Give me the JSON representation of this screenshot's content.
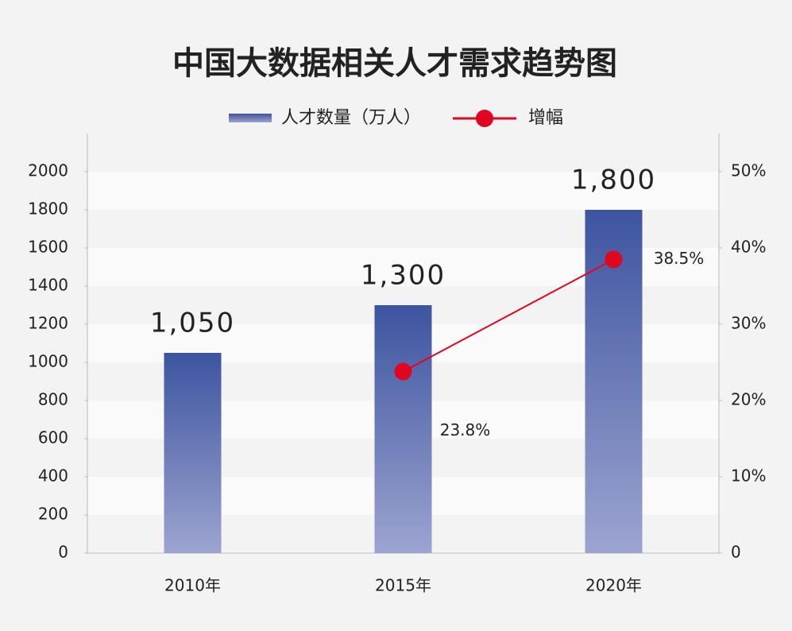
{
  "chart_data": {
    "type": "bar",
    "title": "中国大数据相关人才需求趋势图",
    "categories": [
      "2010年",
      "2015年",
      "2020年"
    ],
    "series": [
      {
        "name": "人才数量（万人）",
        "type": "bar",
        "color": "#3f56a0",
        "values": [
          1050,
          1300,
          1800
        ],
        "value_labels": [
          "1,050",
          "1,300",
          "1,800"
        ]
      },
      {
        "name": "增幅",
        "type": "line",
        "axis": "y2",
        "color": "#e0061f",
        "values": [
          null,
          23.8,
          38.5
        ],
        "value_labels": [
          null,
          "23.8%",
          "38.5%"
        ]
      }
    ],
    "ylim": [
      0,
      2200
    ],
    "yticks": [
      0,
      200,
      400,
      600,
      800,
      1000,
      1200,
      1400,
      1600,
      1800,
      2000
    ],
    "y2lim": [
      0,
      55
    ],
    "y2ticks": [
      0,
      {
        "value": 10,
        "label": "10%"
      },
      {
        "value": 20,
        "label": "20%"
      },
      {
        "value": 30,
        "label": "30%"
      },
      {
        "value": 40,
        "label": "40%"
      },
      {
        "value": 50,
        "label": "50%"
      }
    ],
    "legend": "top"
  }
}
